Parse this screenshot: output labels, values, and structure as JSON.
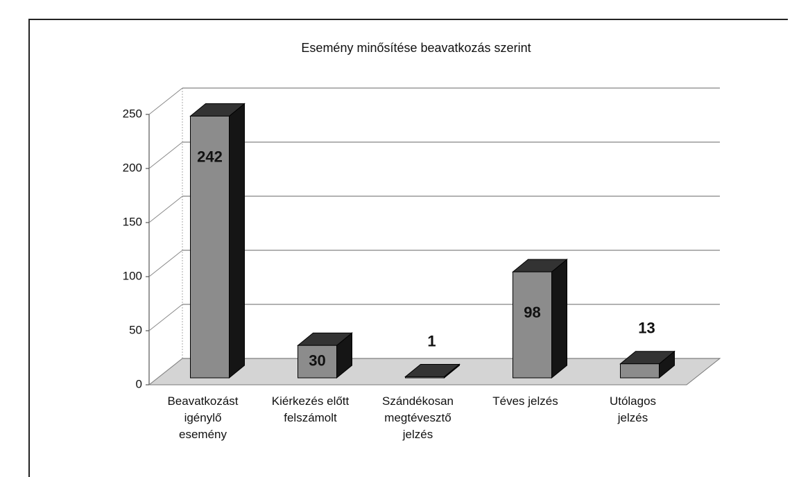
{
  "chart_data": {
    "type": "bar3d",
    "title": "Esemény minősítése beavatkozás szerint",
    "categories": [
      "Beavatkozást\nigénylő\nesemény",
      "Kiérkezés előtt\nfelszámolt",
      "Szándékosan\nmegtévesztő\njelzés",
      "Téves jelzés",
      "Utólagos\njelzés"
    ],
    "values": [
      242,
      30,
      1,
      98,
      13
    ],
    "color": "#8c8c8c",
    "ylim": [
      0,
      250
    ],
    "yticks": [
      0,
      50,
      100,
      150,
      200,
      250
    ],
    "grid": true
  }
}
